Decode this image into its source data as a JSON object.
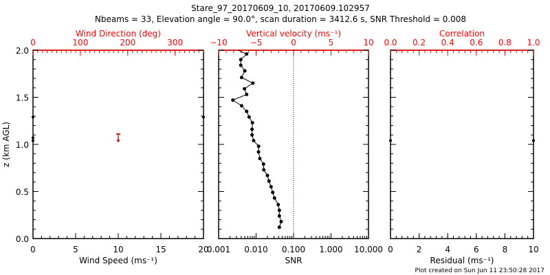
{
  "chart_data": [
    {
      "type": "scatter",
      "panel": "left",
      "title_line1": "Stare_97_20170609_10, 20170609.102957",
      "title_line2": "Nbeams = 33, Elevation angle = 90.0°, scan duration = 3412.6 s, SNR Threshold = 0.008",
      "xlabel_top": "Wind Direction (deg)",
      "xlabel_bottom": "Wind Speed (ms⁻¹)",
      "ylabel": "z (km AGL)",
      "xlim_top": [
        0,
        360
      ],
      "xlim_bottom": [
        0,
        20
      ],
      "ylim": [
        0,
        2
      ],
      "xticks_top": [
        "0",
        "100",
        "200",
        "300"
      ],
      "xticks_top_values": [
        0,
        100,
        200,
        300
      ],
      "xticks_bottom": [
        "0",
        "5",
        "10",
        "15",
        "20"
      ],
      "xticks_bottom_values": [
        0,
        5,
        10,
        15,
        20
      ],
      "yticks": [
        "0.0",
        "0.5",
        "1.0",
        "1.5",
        "2.0"
      ],
      "yticks_values": [
        0,
        0.5,
        1.0,
        1.5,
        2.0
      ],
      "wind_speed_points": [
        {
          "x": 0,
          "z": 1.29
        },
        {
          "x": 0,
          "z": 1.07
        },
        {
          "x": 0,
          "z": 1.04
        },
        {
          "x": 20,
          "z": 1.29
        }
      ],
      "wind_direction_errorbar": {
        "x": 180,
        "z_low": 1.04,
        "z_high": 1.11
      },
      "colors": {
        "top_axis": "#ff0000",
        "direction": "#cc2222",
        "speed": "#000000"
      }
    },
    {
      "type": "line",
      "panel": "middle",
      "xlabel_top": "Vertical velocity (ms⁻¹)",
      "xlabel_bottom": "SNR",
      "xscale_bottom": "log",
      "xlim_top": [
        -10,
        10
      ],
      "xlim_bottom": [
        0.001,
        10
      ],
      "ylim": [
        0,
        2
      ],
      "xticks_top": [
        "−10",
        "−5",
        "0",
        "5",
        "10"
      ],
      "xticks_top_values": [
        -10,
        -5,
        0,
        5,
        10
      ],
      "xticks_bottom": [
        "0.001",
        "0.010",
        "0.100",
        "1.000",
        "10.000"
      ],
      "xticks_bottom_values": [
        0.001,
        0.01,
        0.1,
        1,
        10
      ],
      "threshold_line": 0.1,
      "snr_series": {
        "z": [
          2.0,
          1.96,
          1.9,
          1.84,
          1.78,
          1.71,
          1.65,
          1.59,
          1.53,
          1.47,
          1.41,
          1.35,
          1.29,
          1.23,
          1.16,
          1.1,
          1.04,
          0.98,
          0.92,
          0.85,
          0.79,
          0.73,
          0.67,
          0.61,
          0.55,
          0.49,
          0.43,
          0.36,
          0.3,
          0.24,
          0.18,
          0.12
        ],
        "snr": [
          0.0033,
          0.0056,
          0.0039,
          0.0039,
          0.005,
          0.0041,
          0.0082,
          0.0049,
          0.0056,
          0.0024,
          0.0041,
          0.0056,
          0.0065,
          0.008,
          0.0078,
          0.0078,
          0.0086,
          0.0117,
          0.0116,
          0.0126,
          0.0158,
          0.016,
          0.0201,
          0.0221,
          0.0251,
          0.0278,
          0.031,
          0.039,
          0.0417,
          0.0417,
          0.0467,
          0.0417
        ]
      }
    },
    {
      "type": "scatter",
      "panel": "right",
      "xlabel_top": "Correlation",
      "xlabel_bottom": "Residual (ms⁻¹)",
      "xlim_top": [
        0,
        1
      ],
      "xlim_bottom": [
        0,
        10
      ],
      "ylim": [
        0,
        2
      ],
      "xticks_top": [
        "0.0",
        "0.2",
        "0.4",
        "0.6",
        "0.8",
        "1.0"
      ],
      "xticks_top_values": [
        0,
        0.2,
        0.4,
        0.6,
        0.8,
        1.0
      ],
      "xticks_bottom": [
        "0",
        "2",
        "4",
        "6",
        "8",
        "10"
      ],
      "xticks_bottom_values": [
        0,
        2,
        4,
        6,
        8,
        10
      ],
      "points": [
        {
          "x": 0,
          "z": 1.04
        },
        {
          "x": 10,
          "z": 1.04
        }
      ]
    }
  ],
  "footer": "Plot created on Sun Jun 11 23:50:28 2017"
}
